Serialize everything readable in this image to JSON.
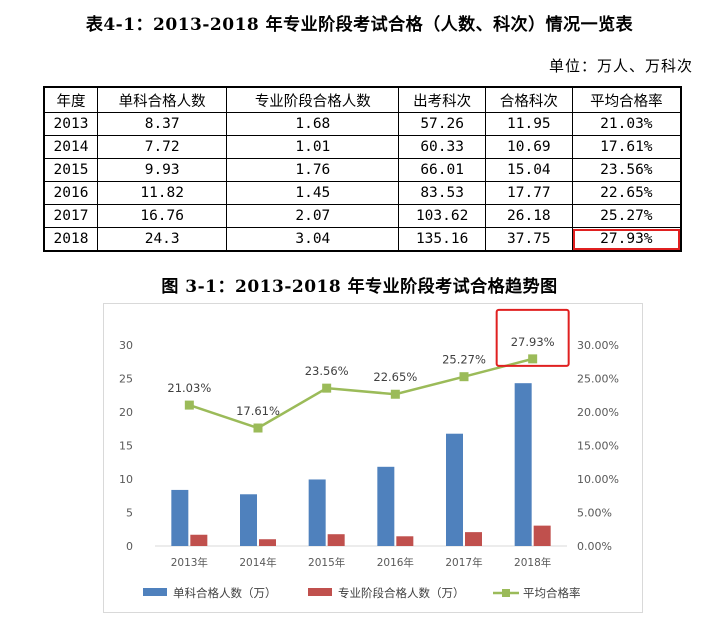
{
  "table_title": "表4-1：2013-2018 年专业阶段考试合格（人数、科次）情况一览表",
  "unit_note": "单位：万人、万科次",
  "table": {
    "headers": [
      "年度",
      "单科合格人数",
      "专业阶段合格人数",
      "出考科次",
      "合格科次",
      "平均合格率"
    ],
    "rows": [
      [
        "2013",
        "8.37",
        "1.68",
        "57.26",
        "11.95",
        "21.03%"
      ],
      [
        "2014",
        "7.72",
        "1.01",
        "60.33",
        "10.69",
        "17.61%"
      ],
      [
        "2015",
        "9.93",
        "1.76",
        "66.01",
        "15.04",
        "23.56%"
      ],
      [
        "2016",
        "11.82",
        "1.45",
        "83.53",
        "17.77",
        "22.65%"
      ],
      [
        "2017",
        "16.76",
        "2.07",
        "103.62",
        "26.18",
        "25.27%"
      ],
      [
        "2018",
        "24.3",
        "3.04",
        "135.16",
        "37.75",
        "27.93%"
      ]
    ],
    "highlight_color": "#e02020"
  },
  "chart_title": "图 3-1：2013-2018 年专业阶段考试合格趋势图",
  "chart_data": {
    "type": "bar",
    "categories": [
      "2013年",
      "2014年",
      "2015年",
      "2016年",
      "2017年",
      "2018年"
    ],
    "series": [
      {
        "name": "单科合格人数（万）",
        "type": "bar",
        "axis": "left",
        "color": "#4f81bd",
        "values": [
          8.37,
          7.72,
          9.93,
          11.82,
          16.76,
          24.3
        ]
      },
      {
        "name": "专业阶段合格人数（万）",
        "type": "bar",
        "axis": "left",
        "color": "#c0504d",
        "values": [
          1.68,
          1.01,
          1.76,
          1.45,
          2.07,
          3.04
        ]
      },
      {
        "name": "平均合格率",
        "type": "line",
        "axis": "right",
        "color": "#9bbb59",
        "values": [
          21.03,
          17.61,
          23.56,
          22.65,
          25.27,
          27.93
        ]
      }
    ],
    "line_labels": [
      "21.03%",
      "17.61%",
      "23.56%",
      "22.65%",
      "25.27%",
      "27.93%"
    ],
    "y_left": {
      "min": 0,
      "max": 30,
      "ticks": [
        "0",
        "5",
        "10",
        "15",
        "20",
        "25",
        "30"
      ]
    },
    "y_right": {
      "min": 0,
      "max": 30,
      "ticks": [
        "0.00%",
        "5.00%",
        "10.00%",
        "15.00%",
        "20.00%",
        "25.00%",
        "30.00%"
      ]
    },
    "grid": false,
    "legend_position": "bottom",
    "highlight_index": 5,
    "highlight_color": "#e02020"
  }
}
